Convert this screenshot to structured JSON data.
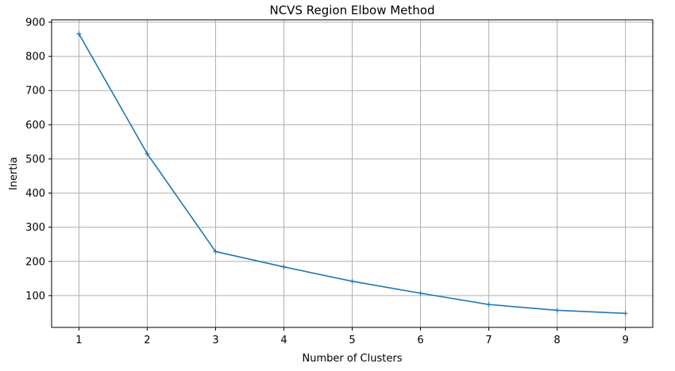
{
  "chart_data": {
    "type": "line",
    "title": "NCVS Region Elbow Method",
    "xlabel": "Number of Clusters",
    "ylabel": "Inertia",
    "x": [
      1,
      2,
      3,
      4,
      5,
      6,
      7,
      8,
      9
    ],
    "series": [
      {
        "values": [
          866,
          515,
          229,
          184,
          142,
          107,
          74,
          57,
          48
        ],
        "color": "#1f77b4",
        "marker": "+"
      }
    ],
    "xlim": [
      0.6,
      9.4
    ],
    "ylim": [
      7,
      907
    ],
    "xticks": [
      1,
      2,
      3,
      4,
      5,
      6,
      7,
      8,
      9
    ],
    "yticks": [
      100,
      200,
      300,
      400,
      500,
      600,
      700,
      800,
      900
    ],
    "grid": true,
    "grid_color": "#b0b0b0"
  }
}
